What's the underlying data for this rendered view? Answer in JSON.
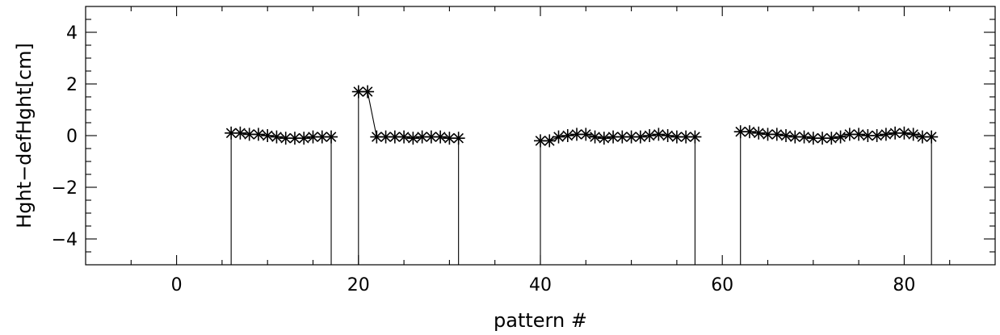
{
  "chart_data": {
    "type": "line",
    "xlabel": "pattern #",
    "ylabel": "Hght−defHght[cm]",
    "xlim": [
      -10,
      90
    ],
    "ylim": [
      -5,
      5
    ],
    "x_ticks": [
      0,
      20,
      40,
      60,
      80
    ],
    "y_ticks": [
      -4,
      -2,
      0,
      2,
      4
    ],
    "x_tick_labels": [
      "0",
      "20",
      "40",
      "60",
      "80"
    ],
    "y_tick_labels": [
      "−4",
      "−2",
      "0",
      "2",
      "4"
    ],
    "x_minor_step": 5,
    "y_minor_step": 0.5,
    "grid": false,
    "marker": "asterisk",
    "segments": [
      {
        "x": [
          6,
          7,
          8,
          9,
          10,
          11,
          12,
          13,
          14,
          15,
          16,
          17
        ],
        "y": [
          0.1,
          0.1,
          0.05,
          0.05,
          0.0,
          -0.05,
          -0.1,
          -0.1,
          -0.1,
          -0.05,
          -0.05,
          -0.05
        ]
      },
      {
        "x": [
          20,
          21,
          22,
          23,
          24,
          25,
          26,
          27,
          28,
          29,
          30,
          31
        ],
        "y": [
          1.7,
          1.7,
          -0.05,
          -0.05,
          -0.05,
          -0.05,
          -0.1,
          -0.05,
          -0.05,
          -0.05,
          -0.1,
          -0.1
        ]
      },
      {
        "x": [
          40,
          41,
          42,
          43,
          44,
          45,
          46,
          47,
          48,
          49,
          50,
          51,
          52,
          53,
          54,
          55,
          56,
          57
        ],
        "y": [
          -0.2,
          -0.2,
          -0.05,
          0.0,
          0.05,
          0.05,
          -0.05,
          -0.1,
          -0.05,
          -0.05,
          -0.05,
          -0.05,
          0.0,
          0.05,
          0.0,
          -0.05,
          -0.05,
          -0.05
        ]
      },
      {
        "x": [
          62,
          63,
          64,
          65,
          66,
          67,
          68,
          69,
          70,
          71,
          72,
          73,
          74,
          75,
          76,
          77,
          78,
          79,
          80,
          81,
          82,
          83
        ],
        "y": [
          0.15,
          0.15,
          0.1,
          0.05,
          0.05,
          0.0,
          -0.05,
          -0.05,
          -0.1,
          -0.1,
          -0.1,
          -0.05,
          0.05,
          0.05,
          0.0,
          0.0,
          0.05,
          0.1,
          0.1,
          0.05,
          -0.05,
          -0.05
        ]
      }
    ]
  }
}
